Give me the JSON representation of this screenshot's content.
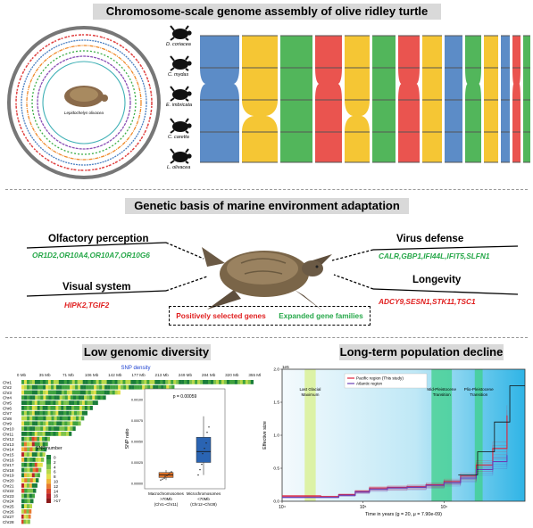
{
  "panel_top": {
    "title": "Chromosome-scale genome assembly of olive ridley turtle",
    "circos_center_label": "Lepidochelys olivacea",
    "species": [
      "D. coriacea",
      "C. mydas",
      "E. imbricata",
      "C. caretta",
      "L. olivacea"
    ],
    "colors": {
      "blue": "#4a7fc1",
      "yellow": "#f4c01e",
      "green": "#3fae49",
      "red": "#e8413c"
    }
  },
  "panel_middle": {
    "title": "Genetic basis of marine environment adaptation",
    "traits": [
      {
        "name": "Olfactory perception",
        "genes": "OR1D2,OR10A4,OR10A7,OR10G6",
        "type": "expanded"
      },
      {
        "name": "Visual system",
        "genes": "HIPK2,TGIF2",
        "type": "positive"
      },
      {
        "name": "Virus defense",
        "genes": "CALR,GBP1,IFI44L,IFIT5,SLFN1",
        "type": "expanded"
      },
      {
        "name": "Longevity",
        "genes": "ADCY9,SESN1,STK11,TSC1",
        "type": "positive"
      }
    ],
    "legend": {
      "positive": "Positively selected genes",
      "expanded": "Expanded gene families"
    },
    "colors": {
      "positive": "#e02020",
      "expanded": "#27a84a"
    }
  },
  "panel_bottom_left": {
    "title": "Low genomic diversity",
    "density_title": "SNP density",
    "axis_ticks": [
      "0 Mb",
      "35 Mb",
      "71 Mb",
      "106 Mb",
      "142 Mb",
      "177 Mb",
      "213 Mb",
      "249 Mb",
      "284 Mb",
      "320 Mb",
      "355 Mb"
    ],
    "chromosomes": [
      "Chr1",
      "Chr2",
      "Chr3",
      "Chr4",
      "Chr5",
      "Chr6",
      "Chr7",
      "Chr8",
      "Chr9",
      "Chr10",
      "Chr11",
      "Chr12",
      "Chr13",
      "Chr14",
      "Chr15",
      "Chr16",
      "Chr17",
      "Chr18",
      "Chr19",
      "Chr20",
      "Chr21",
      "Chr22",
      "Chr23",
      "Chr24",
      "Chr25",
      "Chr26",
      "Chr27",
      "Chr28"
    ],
    "chromosome_lengths_mb": [
      352,
      232,
      150,
      128,
      116,
      108,
      100,
      95,
      90,
      82,
      76,
      43,
      40,
      38,
      36,
      34,
      32,
      30,
      28,
      26,
      24,
      22,
      20,
      18,
      16,
      15,
      14,
      13
    ],
    "snp_legend_title": "SNP number",
    "snp_legend_labels": [
      "0",
      "2",
      "4",
      "6",
      "8",
      "10",
      "12",
      "14",
      "16",
      ">17"
    ],
    "snp_legend_colors": [
      "#1a7d3a",
      "#3fa33f",
      "#7cc24a",
      "#b8d84a",
      "#e3e04b",
      "#f0b43a",
      "#e77a2e",
      "#d8432a",
      "#b8242a",
      "#8b1a1a"
    ],
    "boxplot": {
      "p_value": "p = 0.00059",
      "ylabel": "SNP ratio",
      "yticks": [
        "0.00000",
        "0.00025",
        "0.00050",
        "0.00075",
        "0.00100"
      ],
      "groups": [
        {
          "label_line1": "Macrochromosomes",
          "label_line2": ">70Mb",
          "label_line3": "(Chr1~Chr11)",
          "color": "#e0742a",
          "q1": 7e-05,
          "median": 0.0001,
          "q3": 0.00013,
          "whisker_low": 4e-05,
          "whisker_high": 0.00016
        },
        {
          "label_line1": "Microchromosomes",
          "label_line2": "<70Mb",
          "label_line3": "(Chr12~Chr28)",
          "color": "#2a64b3",
          "q1": 0.00025,
          "median": 0.00038,
          "q3": 0.00055,
          "whisker_low": 0.0001,
          "whisker_high": 0.0008
        }
      ]
    }
  },
  "panel_bottom_right": {
    "title": "Long-term population decline",
    "ylabel": "Effective size",
    "y_exponent": "1e5",
    "yticks": [
      "0.0",
      "0.5",
      "1.0",
      "1.5",
      "2.0"
    ],
    "xlabel": "Time in years (g = 20, μ = 7.90e-09)",
    "xticks": [
      "10⁴",
      "10⁵",
      "10⁶"
    ],
    "legend": [
      "Pacific region (This study)",
      "Atlantic region"
    ],
    "legend_colors": [
      "#e0223a",
      "#6a3fb5"
    ],
    "periods": [
      {
        "label_line1": "Last Glacial",
        "label_line2": "Maximum",
        "start": 19000,
        "end": 26000,
        "color": "#d8f08a"
      },
      {
        "label_line1": "Mid-Pleistocene",
        "label_line2": "Transition",
        "start": 700000,
        "end": 1250000,
        "color": "#3fd08a"
      },
      {
        "label_line1": "Plio-Pleistocene",
        "label_line2": "Transition",
        "start": 2400000,
        "end": 3000000,
        "color": "#3fd08a"
      }
    ],
    "chart_data": {
      "type": "line",
      "xscale": "log",
      "xlim": [
        10000,
        10000000
      ],
      "ylim": [
        0,
        200000
      ],
      "series": [
        {
          "name": "Pacific region (This study)",
          "x": [
            10000,
            20000,
            30000,
            50000,
            80000,
            120000,
            200000,
            350000,
            600000,
            1000000,
            1600000,
            2500000,
            4000000,
            6000000
          ],
          "y": [
            8000,
            8000,
            7000,
            10000,
            15000,
            20000,
            21000,
            22000,
            25000,
            30000,
            38000,
            55000,
            80000,
            130000
          ]
        },
        {
          "name": "Atlantic region",
          "x": [
            10000,
            20000,
            30000,
            50000,
            80000,
            120000,
            200000,
            350000,
            600000,
            1000000,
            1600000,
            2500000,
            4000000,
            6000000
          ],
          "y": [
            6000,
            6000,
            6000,
            9000,
            14000,
            18000,
            20000,
            21000,
            24000,
            28000,
            35000,
            48000,
            60000,
            70000
          ]
        }
      ]
    }
  }
}
